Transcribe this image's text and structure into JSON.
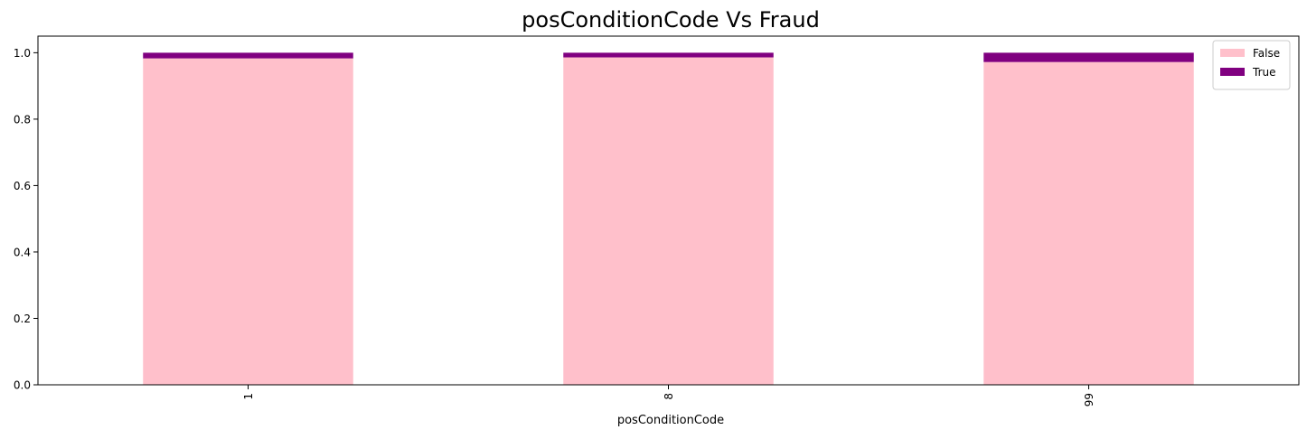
{
  "chart_data": {
    "type": "bar",
    "stacked": true,
    "title": "posConditionCode Vs Fraud",
    "xlabel": "posConditionCode",
    "ylabel": "",
    "categories": [
      "1",
      "8",
      "99"
    ],
    "series": [
      {
        "name": "False",
        "color": "#ffc0cb",
        "values": [
          0.983,
          0.986,
          0.972
        ]
      },
      {
        "name": "True",
        "color": "#800080",
        "values": [
          0.017,
          0.014,
          0.028
        ]
      }
    ],
    "ylim": [
      0,
      1.05
    ],
    "yticks": [
      0.0,
      0.2,
      0.4,
      0.6,
      0.8,
      1.0
    ],
    "ytick_labels": [
      "0.0",
      "0.2",
      "0.4",
      "0.6",
      "0.8",
      "1.0"
    ],
    "xtick_rotation": "vertical",
    "grid": false,
    "legend": {
      "placement": "top-right",
      "entries": [
        "False",
        "True"
      ]
    }
  }
}
